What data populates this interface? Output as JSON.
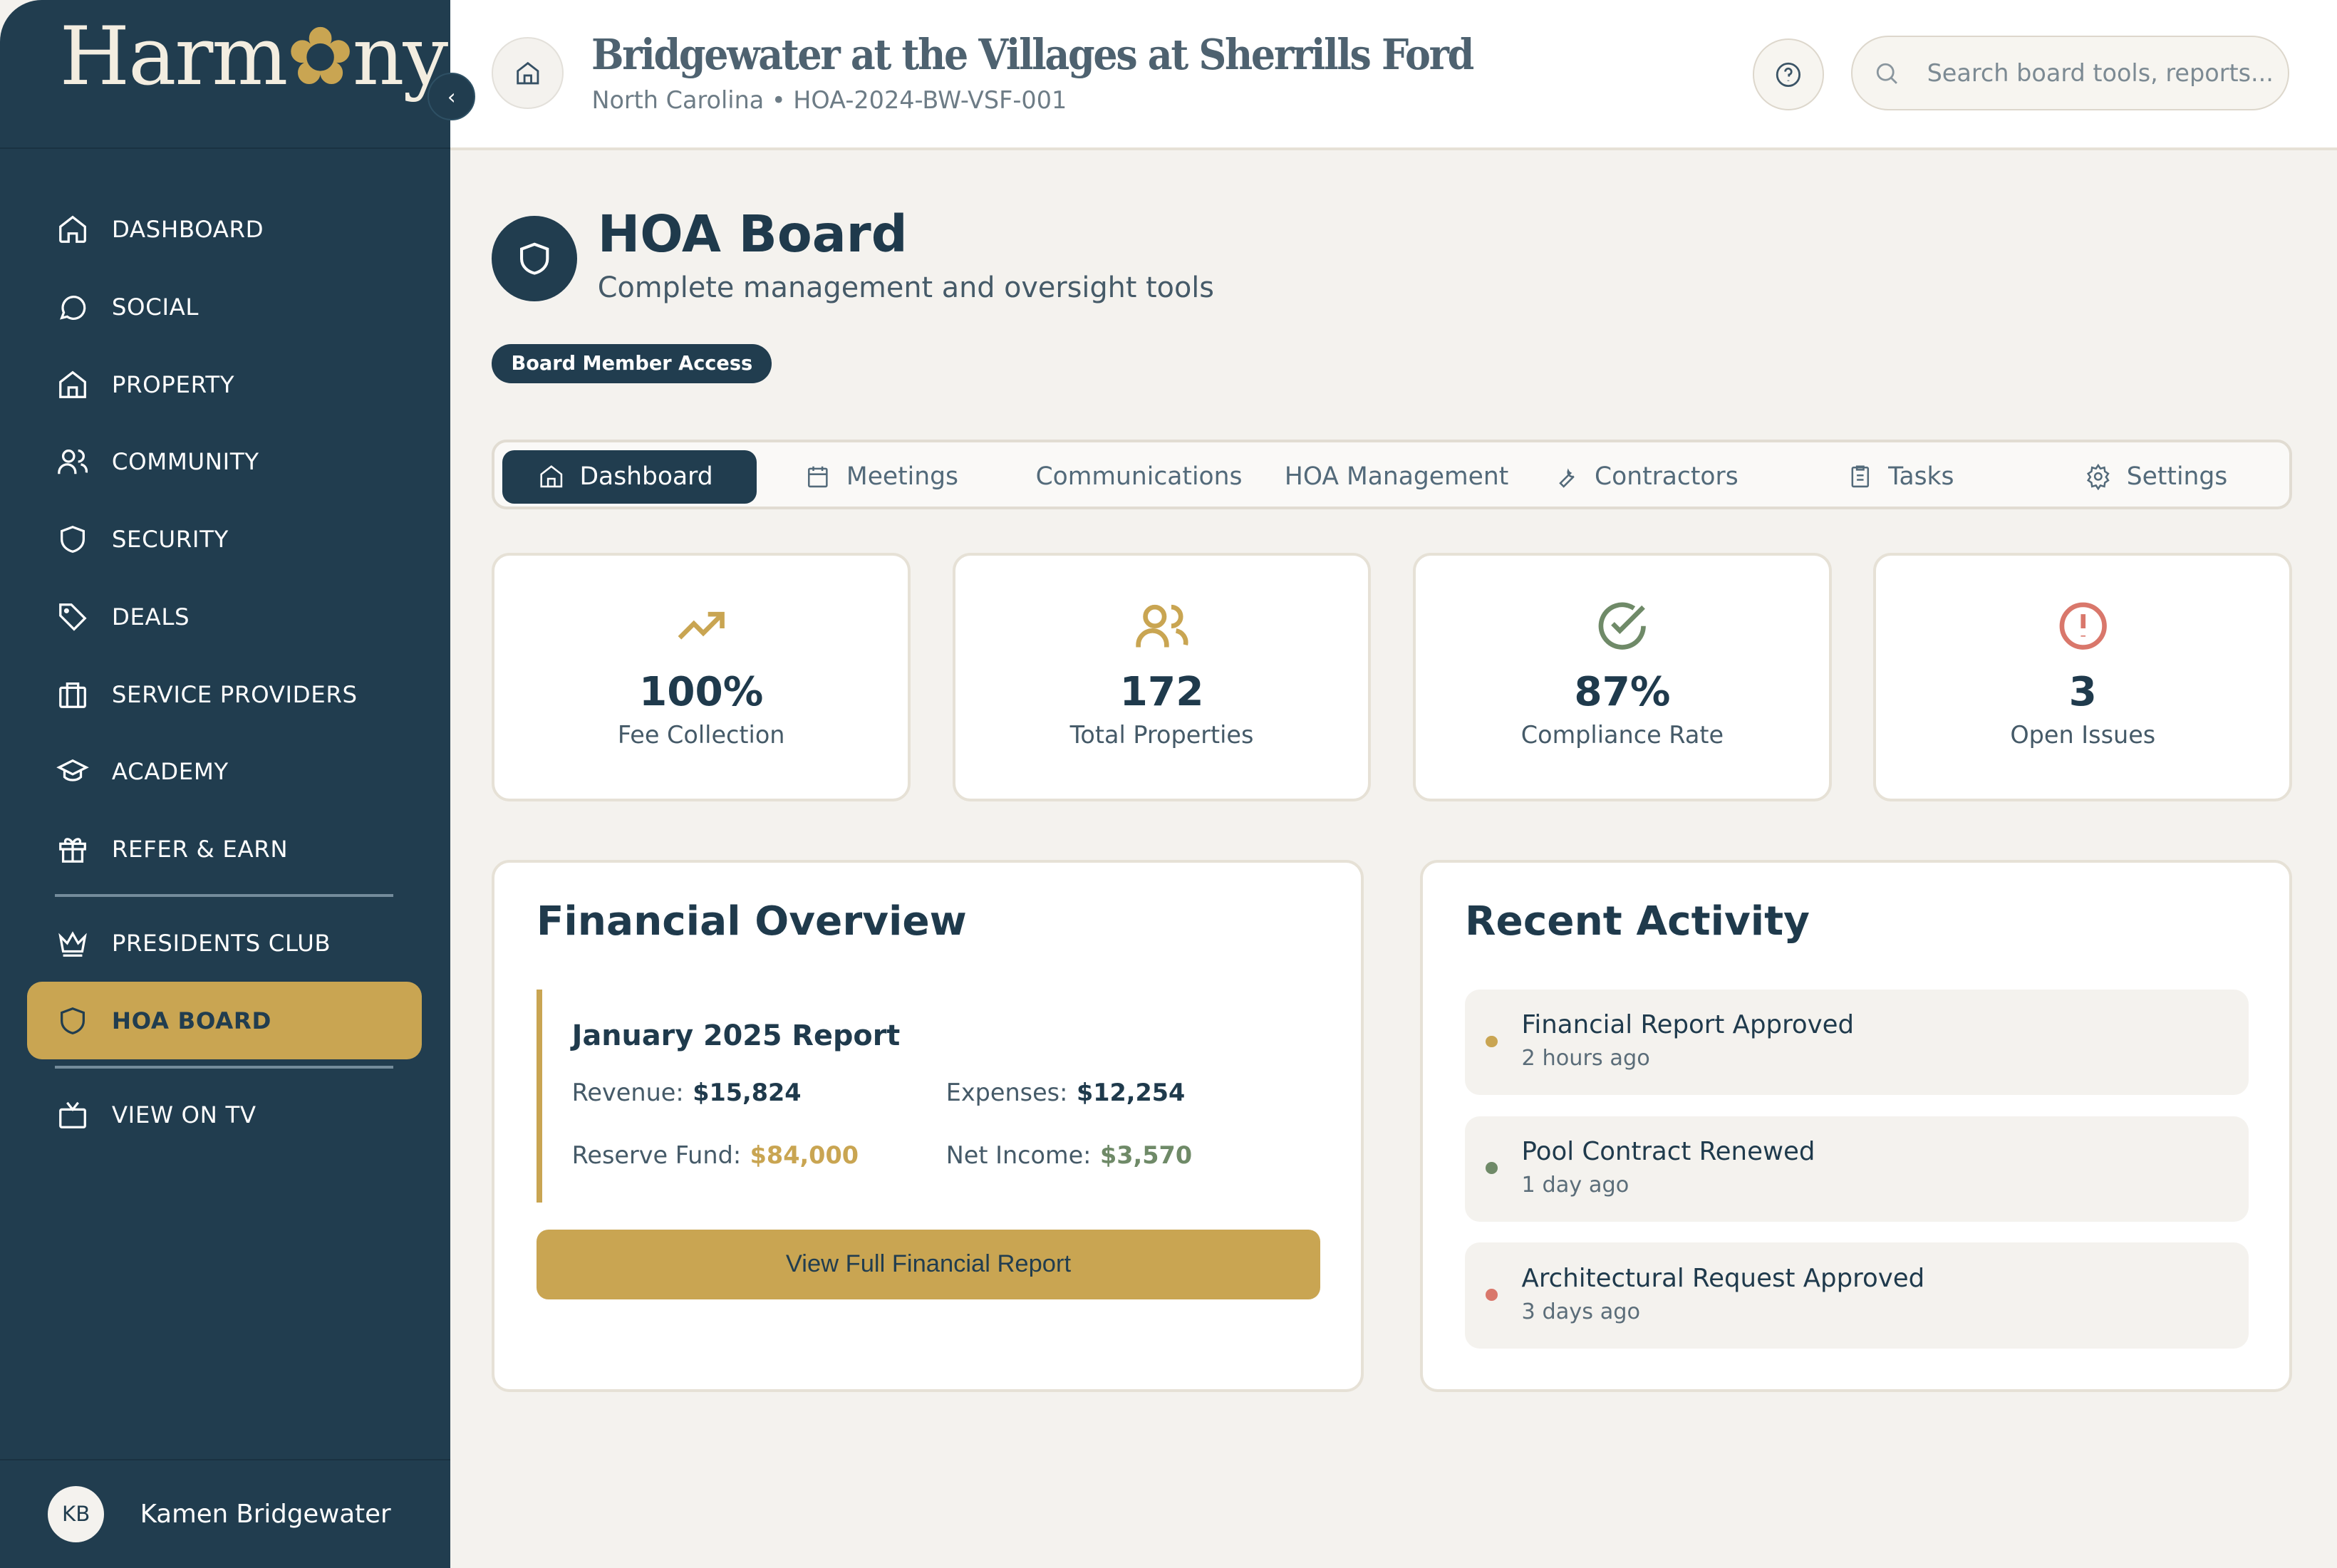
{
  "sidebar": {
    "logo": "Harmony",
    "items": [
      {
        "label": "DASHBOARD",
        "icon": "home-icon"
      },
      {
        "label": "SOCIAL",
        "icon": "chat-bubble-icon"
      },
      {
        "label": "PROPERTY",
        "icon": "house-icon"
      },
      {
        "label": "COMMUNITY",
        "icon": "users-icon"
      },
      {
        "label": "SECURITY",
        "icon": "shield-icon"
      },
      {
        "label": "DEALS",
        "icon": "tag-icon"
      },
      {
        "label": "SERVICE PROVIDERS",
        "icon": "briefcase-icon"
      },
      {
        "label": "ACADEMY",
        "icon": "graduation-cap-icon"
      },
      {
        "label": "REFER & EARN",
        "icon": "gift-icon"
      },
      {
        "label": "PRESIDENTS CLUB",
        "icon": "crown-icon"
      },
      {
        "label": "HOA BOARD",
        "icon": "shield-icon",
        "active": true
      },
      {
        "label": "VIEW ON TV",
        "icon": "tv-icon"
      }
    ],
    "user": {
      "initials": "KB",
      "name": "Kamen Bridgewater"
    }
  },
  "header": {
    "title": "Bridgewater at the Villages at Sherrills Ford",
    "subtitle": "North Carolina • HOA-2024-BW-VSF-001",
    "search_placeholder": "Search board tools, reports..."
  },
  "page": {
    "title": "HOA Board",
    "subtitle": "Complete management and oversight tools",
    "badge": "Board Member Access"
  },
  "tabs": [
    "Dashboard",
    "Meetings",
    "Communications",
    "HOA Management",
    "Contractors",
    "Tasks",
    "Settings"
  ],
  "stats": [
    {
      "value": "100%",
      "label": "Fee Collection",
      "icon": "trending-up-icon",
      "color": "#c9a552"
    },
    {
      "value": "172",
      "label": "Total Properties",
      "icon": "users-icon",
      "color": "#c9a552"
    },
    {
      "value": "87%",
      "label": "Compliance Rate",
      "icon": "check-circle-icon",
      "color": "#6f8a68"
    },
    {
      "value": "3",
      "label": "Open Issues",
      "icon": "alert-circle-icon",
      "color": "#d9776b"
    }
  ],
  "financial": {
    "title": "Financial Overview",
    "report_title": "January 2025 Report",
    "revenue_label": "Revenue:",
    "revenue": "$15,824",
    "expenses_label": "Expenses:",
    "expenses": "$12,254",
    "reserve_label": "Reserve Fund:",
    "reserve": "$84,000",
    "net_label": "Net Income:",
    "net": "$3,570",
    "button": "View Full Financial Report"
  },
  "activity": {
    "title": "Recent Activity",
    "items": [
      {
        "title": "Financial Report Approved",
        "time": "2 hours ago",
        "color": "#c9a552"
      },
      {
        "title": "Pool Contract Renewed",
        "time": "1 day ago",
        "color": "#6f8a68"
      },
      {
        "title": "Architectural Request Approved",
        "time": "3 days ago",
        "color": "#d9776b"
      }
    ]
  }
}
